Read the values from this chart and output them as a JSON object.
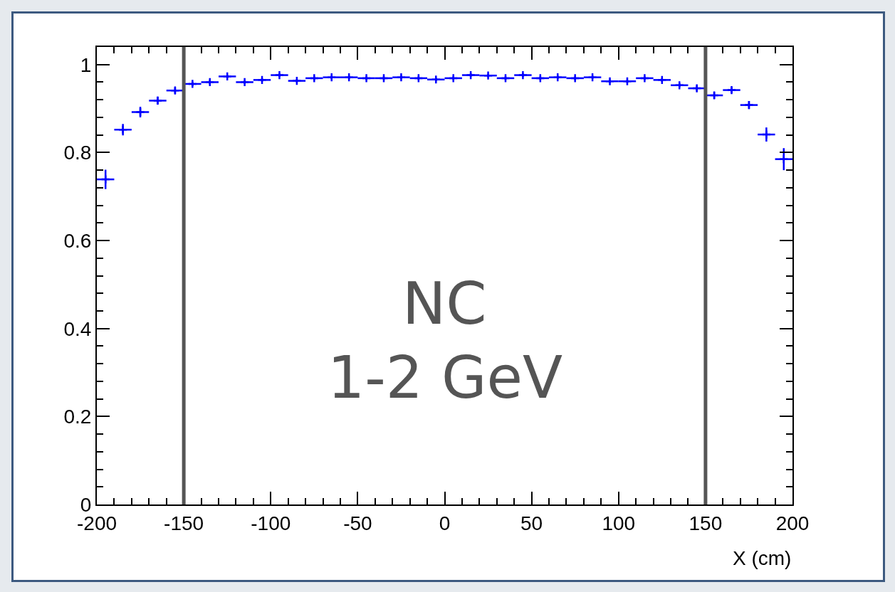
{
  "chart_data": {
    "type": "scatter",
    "xlabel": "X (cm)",
    "x": [
      -195,
      -185,
      -175,
      -165,
      -155,
      -145,
      -135,
      -125,
      -115,
      -105,
      -95,
      -85,
      -75,
      -65,
      -55,
      -45,
      -35,
      -25,
      -15,
      -5,
      5,
      15,
      25,
      35,
      45,
      55,
      65,
      75,
      85,
      95,
      105,
      115,
      125,
      135,
      145,
      155,
      165,
      175,
      185,
      195
    ],
    "series": [
      {
        "color": "#0000ff",
        "values": [
          0.739,
          0.852,
          0.892,
          0.918,
          0.941,
          0.956,
          0.96,
          0.973,
          0.96,
          0.965,
          0.976,
          0.963,
          0.969,
          0.971,
          0.971,
          0.969,
          0.969,
          0.971,
          0.969,
          0.966,
          0.969,
          0.976,
          0.975,
          0.969,
          0.976,
          0.969,
          0.971,
          0.969,
          0.971,
          0.962,
          0.962,
          0.969,
          0.965,
          0.953,
          0.946,
          0.93,
          0.942,
          0.908,
          0.841,
          0.785
        ],
        "errors": [
          0.022,
          0.013,
          0.012,
          0.009,
          0.007,
          0.005,
          0.005,
          0.004,
          0.004,
          0.004,
          0.004,
          0.004,
          0.004,
          0.004,
          0.004,
          0.004,
          0.004,
          0.004,
          0.004,
          0.004,
          0.004,
          0.004,
          0.004,
          0.004,
          0.004,
          0.004,
          0.004,
          0.004,
          0.004,
          0.004,
          0.004,
          0.004,
          0.004,
          0.005,
          0.006,
          0.008,
          0.007,
          0.009,
          0.016,
          0.025
        ],
        "xerrors": [
          5,
          5,
          5,
          5,
          5,
          5,
          5,
          5,
          5,
          5,
          5,
          5,
          5,
          5,
          5,
          5,
          5,
          5,
          5,
          5,
          5,
          5,
          5,
          5,
          5,
          5,
          5,
          5,
          5,
          5,
          5,
          5,
          5,
          5,
          5,
          5,
          5,
          5,
          5,
          5
        ]
      }
    ],
    "xlim": [
      -200,
      200
    ],
    "xticks": [
      -200,
      -150,
      -100,
      -50,
      0,
      50,
      100,
      150,
      200
    ],
    "ylim": [
      0,
      1.04
    ],
    "yticks": [
      0,
      0.2,
      0.4,
      0.6,
      0.8,
      1
    ],
    "ref_lines": [
      {
        "axis": "x",
        "value": -150,
        "color": "#555555"
      },
      {
        "axis": "x",
        "value": 150,
        "color": "#555555"
      }
    ],
    "annotations": [
      "NC",
      "1-2 GeV"
    ],
    "grid": false,
    "marker": "cross"
  }
}
